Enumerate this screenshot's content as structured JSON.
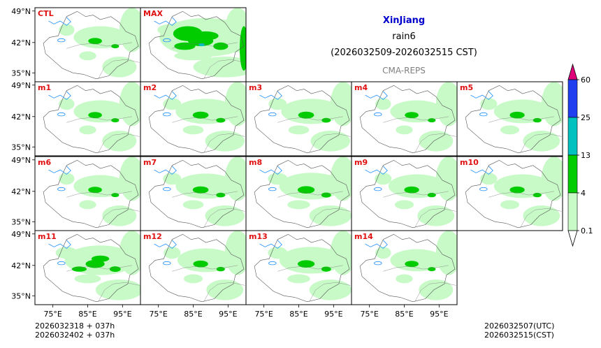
{
  "header": {
    "region": "XinJiang",
    "variable": "rain6",
    "period": "(2026032509-2026032515 CST)",
    "model": "CMA-REPS"
  },
  "footer": {
    "left_line1": "2026032318  +  037h",
    "left_line2": "2026032402  +  037h",
    "right_line1": "2026032507(UTC)",
    "right_line2": "2026032515(CST)"
  },
  "chart_data": {
    "type": "heatmap",
    "title": "XinJiang rain6",
    "panels": [
      {
        "label": "CTL",
        "intensity": 0.45
      },
      {
        "label": "MAX",
        "intensity": 1.0
      },
      {
        "label": "m1",
        "intensity": 0.45
      },
      {
        "label": "m2",
        "intensity": 0.55
      },
      {
        "label": "m3",
        "intensity": 0.55
      },
      {
        "label": "m4",
        "intensity": 0.45
      },
      {
        "label": "m5",
        "intensity": 0.5
      },
      {
        "label": "m6",
        "intensity": 0.45
      },
      {
        "label": "m7",
        "intensity": 0.55
      },
      {
        "label": "m8",
        "intensity": 0.6
      },
      {
        "label": "m9",
        "intensity": 0.5
      },
      {
        "label": "m10",
        "intensity": 0.5
      },
      {
        "label": "m11",
        "intensity": 0.7
      },
      {
        "label": "m12",
        "intensity": 0.5
      },
      {
        "label": "m13",
        "intensity": 0.6
      },
      {
        "label": "m14",
        "intensity": 0.45
      }
    ],
    "x_ticks": [
      "75°E",
      "85°E",
      "95°E"
    ],
    "y_ticks": [
      "49°N",
      "42°N",
      "35°N"
    ],
    "colorbar": {
      "levels": [
        "0.1",
        "4",
        "13",
        "25",
        "60"
      ],
      "colors": [
        "#c8fac8",
        "#00cc00",
        "#00c0c0",
        "#2040f0",
        "#e0007a"
      ]
    }
  }
}
